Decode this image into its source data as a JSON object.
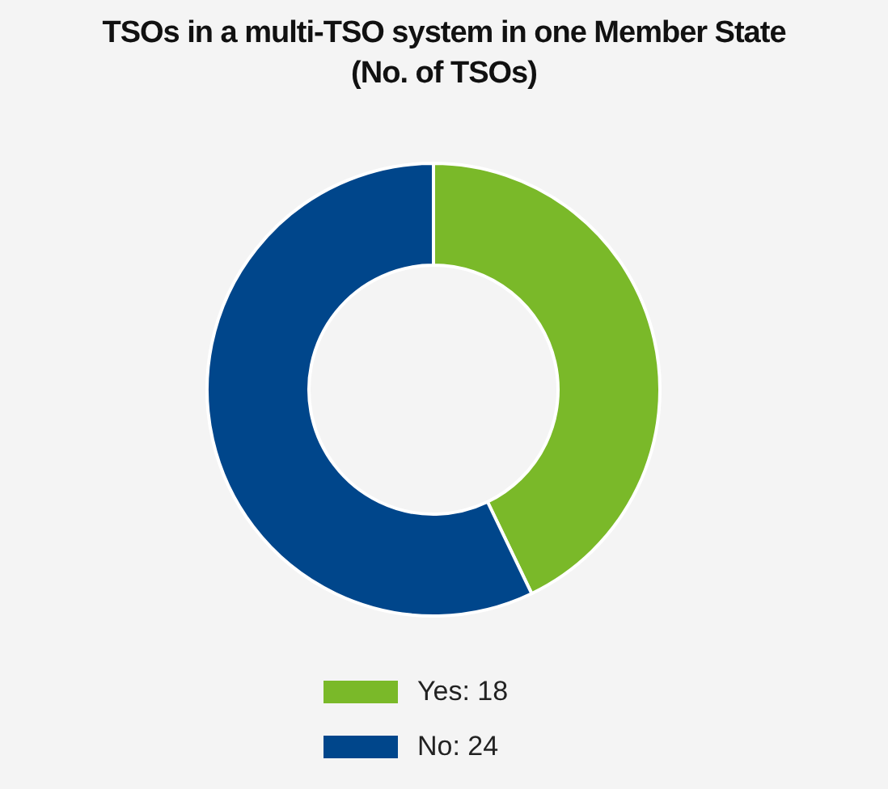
{
  "chart_data": {
    "type": "donut",
    "title": "TSOs in a multi-TSO system in one Member State\n(No. of TSOs)",
    "categories": [
      "Yes: 18",
      "No: 24"
    ],
    "values": [
      18,
      24
    ],
    "colors": [
      "#7ab929",
      "#00468b"
    ],
    "legend": "bottom"
  }
}
